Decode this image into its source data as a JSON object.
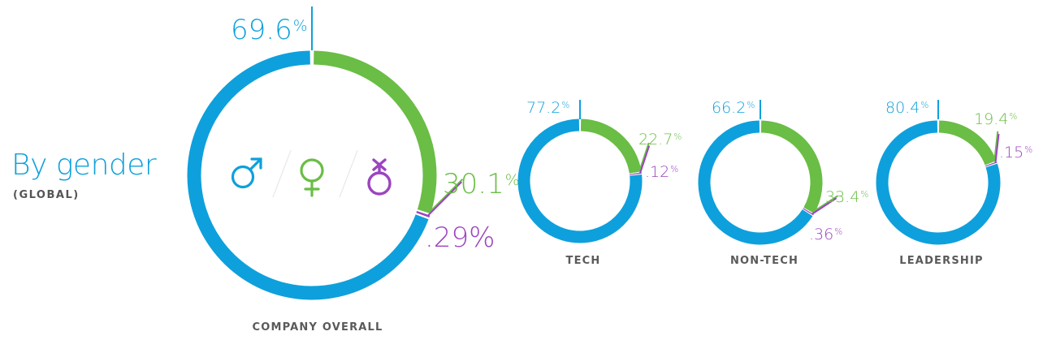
{
  "header": {
    "title": "By gender",
    "subtitle": "(GLOBAL)"
  },
  "colors": {
    "male": "#0ea0dc",
    "female": "#6abd45",
    "nonbinary": "#9b44c0",
    "label": "#5a5a5a",
    "divider": "#e6e6e6"
  },
  "icons": {
    "male": "male-symbol-icon",
    "female": "female-symbol-icon",
    "nonbinary": "nonbinary-symbol-icon"
  },
  "charts": [
    {
      "label": "COMPANY OVERALL",
      "male": {
        "value": "69.6",
        "unit": "%"
      },
      "female": {
        "value": "30.1",
        "unit": "%"
      },
      "nonbinary": {
        "value": ".29",
        "unit": "%"
      }
    },
    {
      "label": "TECH",
      "male": {
        "value": "77.2",
        "unit": "%"
      },
      "female": {
        "value": "22.7",
        "unit": "%"
      },
      "nonbinary": {
        "value": ".12",
        "unit": "%"
      }
    },
    {
      "label": "NON-TECH",
      "male": {
        "value": "66.2",
        "unit": "%"
      },
      "female": {
        "value": "33.4",
        "unit": "%"
      },
      "nonbinary": {
        "value": ".36",
        "unit": "%"
      }
    },
    {
      "label": "LEADERSHIP",
      "male": {
        "value": "80.4",
        "unit": "%"
      },
      "female": {
        "value": "19.4",
        "unit": "%"
      },
      "nonbinary": {
        "value": ".15",
        "unit": "%"
      }
    }
  ],
  "chart_data": {
    "type": "pie",
    "title": "By gender",
    "subtitle": "(GLOBAL)",
    "donut": true,
    "categories": [
      "Male",
      "Female",
      "Non-binary"
    ],
    "legend": [
      "male-symbol",
      "female-symbol",
      "nonbinary-symbol"
    ],
    "groups": [
      "COMPANY OVERALL",
      "TECH",
      "NON-TECH",
      "LEADERSHIP"
    ],
    "series": [
      {
        "name": "COMPANY OVERALL",
        "values": [
          69.6,
          30.1,
          0.29
        ]
      },
      {
        "name": "TECH",
        "values": [
          77.2,
          22.7,
          0.12
        ]
      },
      {
        "name": "NON-TECH",
        "values": [
          66.2,
          33.4,
          0.36
        ]
      },
      {
        "name": "LEADERSHIP",
        "values": [
          80.4,
          19.4,
          0.15
        ]
      }
    ],
    "unit": "%"
  }
}
